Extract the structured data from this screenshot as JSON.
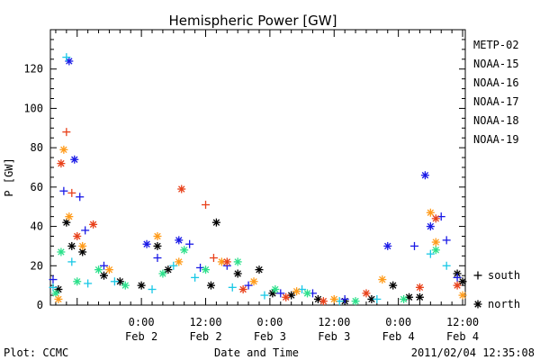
{
  "chart_data": {
    "type": "scatter",
    "title": "Hemispheric Power [GW]",
    "xlabel": "Date and Time",
    "ylabel": "P [GW]",
    "ylim": [
      0,
      140
    ],
    "xlim": [
      "2011-02-01T07:00",
      "2011-02-04T12:30"
    ],
    "yticks": [
      0,
      20,
      40,
      60,
      80,
      100,
      120
    ],
    "xticks": [
      {
        "time": "2011-02-02T00:00",
        "top": "0:00",
        "bottom": "Feb 2"
      },
      {
        "time": "2011-02-02T12:00",
        "top": "12:00",
        "bottom": "Feb 2"
      },
      {
        "time": "2011-02-03T00:00",
        "top": "0:00",
        "bottom": "Feb 3"
      },
      {
        "time": "2011-02-03T12:00",
        "top": "12:00",
        "bottom": "Feb 3"
      },
      {
        "time": "2011-02-04T00:00",
        "top": "0:00",
        "bottom": "Feb 4"
      },
      {
        "time": "2011-02-04T12:00",
        "top": "12:00",
        "bottom": "Feb 4"
      }
    ],
    "marker_legend": [
      {
        "marker": "+",
        "label": "south"
      },
      {
        "marker": "*",
        "label": "north"
      }
    ],
    "series": [
      {
        "name": "METP-02",
        "color": "#000000",
        "points": [
          [
            "2011-02-01T08:30",
            8,
            "*"
          ],
          [
            "2011-02-01T10:00",
            42,
            "*"
          ],
          [
            "2011-02-01T11:00",
            30,
            "*"
          ],
          [
            "2011-02-01T13:00",
            27,
            "*"
          ],
          [
            "2011-02-01T17:00",
            15,
            "*"
          ],
          [
            "2011-02-01T20:00",
            12,
            "*"
          ],
          [
            "2011-02-02T00:00",
            10,
            "*"
          ],
          [
            "2011-02-02T03:00",
            30,
            "*"
          ],
          [
            "2011-02-02T05:00",
            18,
            "*"
          ],
          [
            "2011-02-02T13:00",
            10,
            "*"
          ],
          [
            "2011-02-02T14:00",
            42,
            "*"
          ],
          [
            "2011-02-02T18:00",
            16,
            "*"
          ],
          [
            "2011-02-02T22:00",
            18,
            "*"
          ],
          [
            "2011-02-03T00:30",
            6,
            "*"
          ],
          [
            "2011-02-03T04:00",
            5,
            "*"
          ],
          [
            "2011-02-03T09:00",
            3,
            "*"
          ],
          [
            "2011-02-03T14:00",
            2,
            "*"
          ],
          [
            "2011-02-03T19:00",
            3,
            "*"
          ],
          [
            "2011-02-03T23:00",
            10,
            "*"
          ],
          [
            "2011-02-04T02:00",
            4,
            "*"
          ],
          [
            "2011-02-04T04:00",
            4,
            "*"
          ],
          [
            "2011-02-04T11:00",
            16,
            "*"
          ],
          [
            "2011-02-04T12:00",
            12,
            "*"
          ]
        ]
      },
      {
        "name": "NOAA-15",
        "color": "#1a1ae6",
        "points": [
          [
            "2011-02-01T07:30",
            13,
            "+"
          ],
          [
            "2011-02-01T09:30",
            58,
            "+"
          ],
          [
            "2011-02-01T10:30",
            124,
            "*"
          ],
          [
            "2011-02-01T11:30",
            74,
            "*"
          ],
          [
            "2011-02-01T12:30",
            55,
            "+"
          ],
          [
            "2011-02-01T13:30",
            38,
            "+"
          ],
          [
            "2011-02-01T17:00",
            20,
            "+"
          ],
          [
            "2011-02-02T01:00",
            31,
            "*"
          ],
          [
            "2011-02-02T03:00",
            24,
            "+"
          ],
          [
            "2011-02-02T07:00",
            33,
            "*"
          ],
          [
            "2011-02-02T09:00",
            31,
            "+"
          ],
          [
            "2011-02-02T11:00",
            19,
            "+"
          ],
          [
            "2011-02-02T16:00",
            20,
            "+"
          ],
          [
            "2011-02-02T20:00",
            10,
            "+"
          ],
          [
            "2011-02-03T02:00",
            6,
            "+"
          ],
          [
            "2011-02-03T08:00",
            6,
            "+"
          ],
          [
            "2011-02-03T14:00",
            3,
            "+"
          ],
          [
            "2011-02-03T22:00",
            30,
            "*"
          ],
          [
            "2011-02-04T03:00",
            30,
            "+"
          ],
          [
            "2011-02-04T05:00",
            66,
            "*"
          ],
          [
            "2011-02-04T06:00",
            40,
            "*"
          ],
          [
            "2011-02-04T08:00",
            45,
            "+"
          ],
          [
            "2011-02-04T09:00",
            33,
            "+"
          ],
          [
            "2011-02-04T11:00",
            14,
            "+"
          ]
        ]
      },
      {
        "name": "NOAA-16",
        "color": "#19c8e6",
        "points": [
          [
            "2011-02-01T07:30",
            9,
            "+"
          ],
          [
            "2011-02-01T10:00",
            126,
            "+"
          ],
          [
            "2011-02-01T11:00",
            22,
            "+"
          ],
          [
            "2011-02-01T14:00",
            11,
            "+"
          ],
          [
            "2011-02-01T19:00",
            12,
            "+"
          ],
          [
            "2011-02-02T02:00",
            8,
            "+"
          ],
          [
            "2011-02-02T06:00",
            20,
            "+"
          ],
          [
            "2011-02-02T10:00",
            14,
            "+"
          ],
          [
            "2011-02-02T17:00",
            9,
            "+"
          ],
          [
            "2011-02-02T23:00",
            5,
            "+"
          ],
          [
            "2011-02-03T06:00",
            8,
            "+"
          ],
          [
            "2011-02-03T13:00",
            2,
            "+"
          ],
          [
            "2011-02-03T20:00",
            3,
            "+"
          ],
          [
            "2011-02-04T06:00",
            26,
            "+"
          ],
          [
            "2011-02-04T09:00",
            20,
            "+"
          ]
        ]
      },
      {
        "name": "NOAA-17",
        "color": "#2be08a",
        "points": [
          [
            "2011-02-01T08:00",
            6,
            "*"
          ],
          [
            "2011-02-01T09:00",
            27,
            "*"
          ],
          [
            "2011-02-01T12:00",
            12,
            "*"
          ],
          [
            "2011-02-01T16:00",
            18,
            "*"
          ],
          [
            "2011-02-01T21:00",
            10,
            "*"
          ],
          [
            "2011-02-02T04:00",
            16,
            "*"
          ],
          [
            "2011-02-02T08:00",
            28,
            "*"
          ],
          [
            "2011-02-02T12:00",
            18,
            "*"
          ],
          [
            "2011-02-02T18:00",
            22,
            "*"
          ],
          [
            "2011-02-03T01:00",
            8,
            "*"
          ],
          [
            "2011-02-03T07:00",
            6,
            "*"
          ],
          [
            "2011-02-03T16:00",
            2,
            "*"
          ],
          [
            "2011-02-04T01:00",
            3,
            "*"
          ],
          [
            "2011-02-04T07:00",
            28,
            "*"
          ]
        ]
      },
      {
        "name": "NOAA-18",
        "color": "#ff9b1a",
        "points": [
          [
            "2011-02-01T08:30",
            3,
            "*"
          ],
          [
            "2011-02-01T09:30",
            79,
            "*"
          ],
          [
            "2011-02-01T10:30",
            45,
            "*"
          ],
          [
            "2011-02-01T13:00",
            30,
            "*"
          ],
          [
            "2011-02-01T18:00",
            18,
            "*"
          ],
          [
            "2011-02-02T03:00",
            35,
            "*"
          ],
          [
            "2011-02-02T07:00",
            22,
            "*"
          ],
          [
            "2011-02-02T15:00",
            22,
            "*"
          ],
          [
            "2011-02-02T21:00",
            12,
            "*"
          ],
          [
            "2011-02-03T05:00",
            7,
            "*"
          ],
          [
            "2011-02-03T12:00",
            3,
            "*"
          ],
          [
            "2011-02-03T21:00",
            13,
            "*"
          ],
          [
            "2011-02-04T06:00",
            47,
            "*"
          ],
          [
            "2011-02-04T07:00",
            32,
            "*"
          ],
          [
            "2011-02-04T12:00",
            5,
            "*"
          ]
        ]
      },
      {
        "name": "NOAA-19",
        "color": "#e8411a",
        "points": [
          [
            "2011-02-01T09:00",
            72,
            "*"
          ],
          [
            "2011-02-01T10:00",
            88,
            "+"
          ],
          [
            "2011-02-01T11:00",
            57,
            "+"
          ],
          [
            "2011-02-01T12:00",
            35,
            "*"
          ],
          [
            "2011-02-01T15:00",
            41,
            "*"
          ],
          [
            "2011-02-02T07:30",
            59,
            "*"
          ],
          [
            "2011-02-02T12:00",
            51,
            "+"
          ],
          [
            "2011-02-02T13:30",
            24,
            "+"
          ],
          [
            "2011-02-02T16:00",
            22,
            "*"
          ],
          [
            "2011-02-02T19:00",
            8,
            "*"
          ],
          [
            "2011-02-03T03:00",
            4,
            "*"
          ],
          [
            "2011-02-03T10:00",
            2,
            "*"
          ],
          [
            "2011-02-03T18:00",
            6,
            "*"
          ],
          [
            "2011-02-04T04:00",
            9,
            "*"
          ],
          [
            "2011-02-04T07:00",
            44,
            "*"
          ],
          [
            "2011-02-04T11:00",
            10,
            "*"
          ]
        ]
      }
    ]
  },
  "footer": {
    "plot_label": "Plot: CCMC",
    "timestamp": "2011/02/04 12:35:08"
  }
}
